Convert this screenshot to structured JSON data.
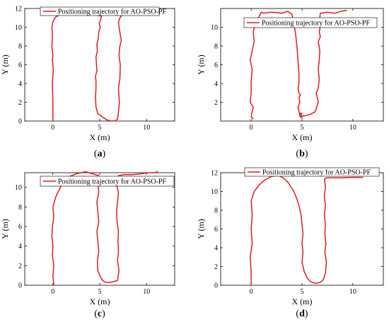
{
  "chart_data": [
    {
      "type": "line",
      "panel_label": "a",
      "xlabel": "X (m)",
      "ylabel": "Y (m)",
      "xlim": [
        -3,
        13
      ],
      "ylim": [
        0,
        12
      ],
      "xticks": [
        0,
        5,
        10
      ],
      "yticks": [
        0,
        2,
        4,
        6,
        8,
        10,
        12
      ],
      "grid": false,
      "legend_position": "top-left",
      "series": [
        {
          "name": "Positioning trajectory for AO-PSO-PF",
          "color": "#e41a1c",
          "x": [
            0,
            0,
            -0.05,
            0.05,
            -0.05,
            0.0,
            -0.1,
            -0.05,
            -0.1,
            0.0,
            0.3,
            0.8,
            1.5,
            2.5,
            3.5,
            4.5,
            4.8,
            5.2,
            5.1,
            4.95,
            5.05,
            4.9,
            4.85,
            4.7,
            4.75,
            4.6,
            4.65,
            4.7,
            4.55,
            4.6,
            4.6,
            4.55,
            4.6,
            4.8,
            5.2,
            5.8,
            6.3,
            6.7,
            6.9,
            7.0,
            7.1,
            7.0,
            7.15,
            7.2,
            7.05,
            7.15,
            7.3,
            7.2,
            7.1,
            7.0,
            7.1,
            7.3,
            7.6,
            8.0,
            8.6,
            9.2,
            9.8,
            10.2
          ],
          "y": [
            0,
            2,
            4,
            5.5,
            6.5,
            7,
            8,
            9,
            10,
            10.6,
            11.1,
            11.35,
            11.45,
            11.4,
            11.35,
            11.3,
            11.25,
            11.2,
            10.8,
            10.4,
            10.0,
            9.5,
            8.8,
            8.2,
            7.5,
            6.8,
            6.0,
            5.3,
            4.8,
            4.2,
            3.5,
            2.5,
            1.5,
            0.8,
            0.5,
            0.1,
            0.0,
            0.05,
            0.2,
            1.0,
            2.0,
            3.5,
            4.5,
            6.0,
            7.0,
            8.0,
            8.6,
            9.2,
            9.8,
            10.4,
            10.9,
            11.2,
            11.35,
            11.4,
            11.35,
            11.3,
            11.4,
            11.5
          ]
        }
      ]
    },
    {
      "type": "line",
      "panel_label": "b",
      "xlabel": "X (m)",
      "ylabel": "Y (m)",
      "xlim": [
        -3,
        13
      ],
      "ylim": [
        0,
        12
      ],
      "xticks": [
        0,
        5,
        10
      ],
      "yticks": [
        2,
        4,
        6,
        8,
        10
      ],
      "grid": false,
      "legend_position": "top-right",
      "series": [
        {
          "name": "Positioning trajectory for AO-PSO-PF",
          "color": "#e41a1c",
          "x": [
            0.2,
            0.0,
            0.2,
            -0.1,
            0.0,
            0.0,
            0.1,
            -0.1,
            0.1,
            0.3,
            0.2,
            0.4,
            0.5,
            0.7,
            0.9,
            1.0,
            1.2,
            2.0,
            3.0,
            3.6,
            4.0,
            4.2,
            4.4,
            4.5,
            4.6,
            4.7,
            4.7,
            4.6,
            4.7,
            4.85,
            4.7,
            4.8,
            4.6,
            4.7,
            4.8,
            5.0,
            4.8,
            4.9,
            5.0,
            5.8,
            6.3,
            6.6,
            6.4,
            6.6,
            6.7,
            6.6,
            6.7,
            6.75,
            6.6,
            6.8,
            6.7,
            6.8,
            6.7,
            6.8,
            7.5,
            8.2,
            8.6,
            8.8,
            9.4
          ],
          "y": [
            0.2,
            0.5,
            1.5,
            2.0,
            3.0,
            4.2,
            5.5,
            6.5,
            7.5,
            8.5,
            9.5,
            10.3,
            10.7,
            11.0,
            11.4,
            11.6,
            11.5,
            11.6,
            11.5,
            11.7,
            11.4,
            10.5,
            9.0,
            8.0,
            6.5,
            5.0,
            4.0,
            3.5,
            3.0,
            2.8,
            2.5,
            2.0,
            1.5,
            1.0,
            0.5,
            0.3,
            0.6,
            0.9,
            0.5,
            0.7,
            1.0,
            2.0,
            3.0,
            3.5,
            4.5,
            5.5,
            6.5,
            7.5,
            8.5,
            9.0,
            9.5,
            10.1,
            10.5,
            11.5,
            11.6,
            11.5,
            11.6,
            11.7,
            11.8
          ]
        }
      ]
    },
    {
      "type": "line",
      "panel_label": "c",
      "xlabel": "X (m)",
      "ylabel": "Y (m)",
      "xlim": [
        -3,
        13
      ],
      "ylim": [
        0,
        11.5
      ],
      "xticks": [
        0,
        5,
        10
      ],
      "yticks": [
        0,
        2,
        4,
        6,
        8,
        10
      ],
      "grid": false,
      "legend_position": "top-right",
      "series": [
        {
          "name": "Positioning trajectory for AO-PSO-PF",
          "color": "#e41a1c",
          "x": [
            0.1,
            0.0,
            0.1,
            -0.05,
            0.0,
            -0.1,
            -0.05,
            0.1,
            0.0,
            0.3,
            0.8,
            1.5,
            2.5,
            3.5,
            4.2,
            4.9,
            4.8,
            4.9,
            4.7,
            4.8,
            4.9,
            4.7,
            4.8,
            4.9,
            4.75,
            4.8,
            5.0,
            5.3,
            5.6,
            6.2,
            6.9,
            7.05,
            6.9,
            7.0,
            6.95,
            7.0,
            6.85,
            6.8,
            6.9,
            7.0,
            6.8,
            6.9,
            7.0,
            7.6,
            8.5,
            9.5,
            10.2,
            10.8,
            11.2
          ],
          "y": [
            0,
            1.0,
            2.0,
            3.0,
            4.0,
            5.0,
            6.0,
            7.0,
            8.0,
            9.0,
            10.0,
            11.0,
            11.4,
            11.6,
            11.4,
            11.2,
            10.5,
            9.5,
            8.5,
            7.5,
            6.5,
            5.5,
            4.5,
            3.5,
            2.5,
            1.5,
            1.0,
            0.5,
            0.3,
            0.3,
            0.5,
            1.5,
            2.5,
            3.5,
            4.5,
            5.5,
            6.5,
            7.5,
            8.5,
            9.5,
            10.2,
            10.8,
            11.2,
            11.3,
            11.3,
            11.4,
            11.5,
            11.5,
            11.6
          ]
        }
      ]
    },
    {
      "type": "line",
      "panel_label": "d",
      "xlabel": "X (m)",
      "ylabel": "Y (m)",
      "xlim": [
        -3,
        13
      ],
      "ylim": [
        0,
        12
      ],
      "xticks": [
        0,
        5,
        10
      ],
      "yticks": [
        0,
        2,
        4,
        6,
        8,
        10,
        12
      ],
      "grid": false,
      "legend_position": "top-center",
      "series": [
        {
          "name": "Positioning trajectory for AO-PSO-PF",
          "color": "#e41a1c",
          "x": [
            0.0,
            0.0,
            -0.1,
            0.1,
            0.0,
            0.1,
            0.0,
            0.3,
            0.8,
            1.3,
            2.0,
            2.7,
            3.2,
            3.6,
            3.9,
            4.2,
            4.5,
            4.7,
            4.9,
            5.0,
            5.1,
            5.0,
            5.1,
            5.0,
            5.2,
            5.5,
            5.8,
            6.3,
            6.8,
            7.1,
            7.3,
            7.4,
            7.25,
            7.35,
            7.25,
            7.3,
            7.2,
            7.3,
            7.2,
            7.3,
            7.25,
            7.2,
            7.4,
            8.0,
            9.0,
            10.0,
            11.0
          ],
          "y": [
            0.0,
            1.5,
            3.0,
            4.5,
            6.0,
            7.5,
            9.0,
            10.0,
            10.7,
            11.2,
            11.6,
            11.7,
            11.4,
            11.0,
            10.5,
            10.0,
            9.2,
            8.5,
            7.5,
            6.5,
            5.5,
            4.5,
            3.5,
            2.5,
            1.5,
            0.8,
            0.4,
            0.2,
            0.3,
            0.6,
            1.3,
            2.5,
            3.5,
            4.5,
            5.5,
            6.5,
            7.5,
            8.5,
            9.5,
            10.5,
            11.0,
            11.3,
            11.45,
            11.45,
            11.45,
            11.5,
            11.5
          ]
        }
      ]
    }
  ]
}
